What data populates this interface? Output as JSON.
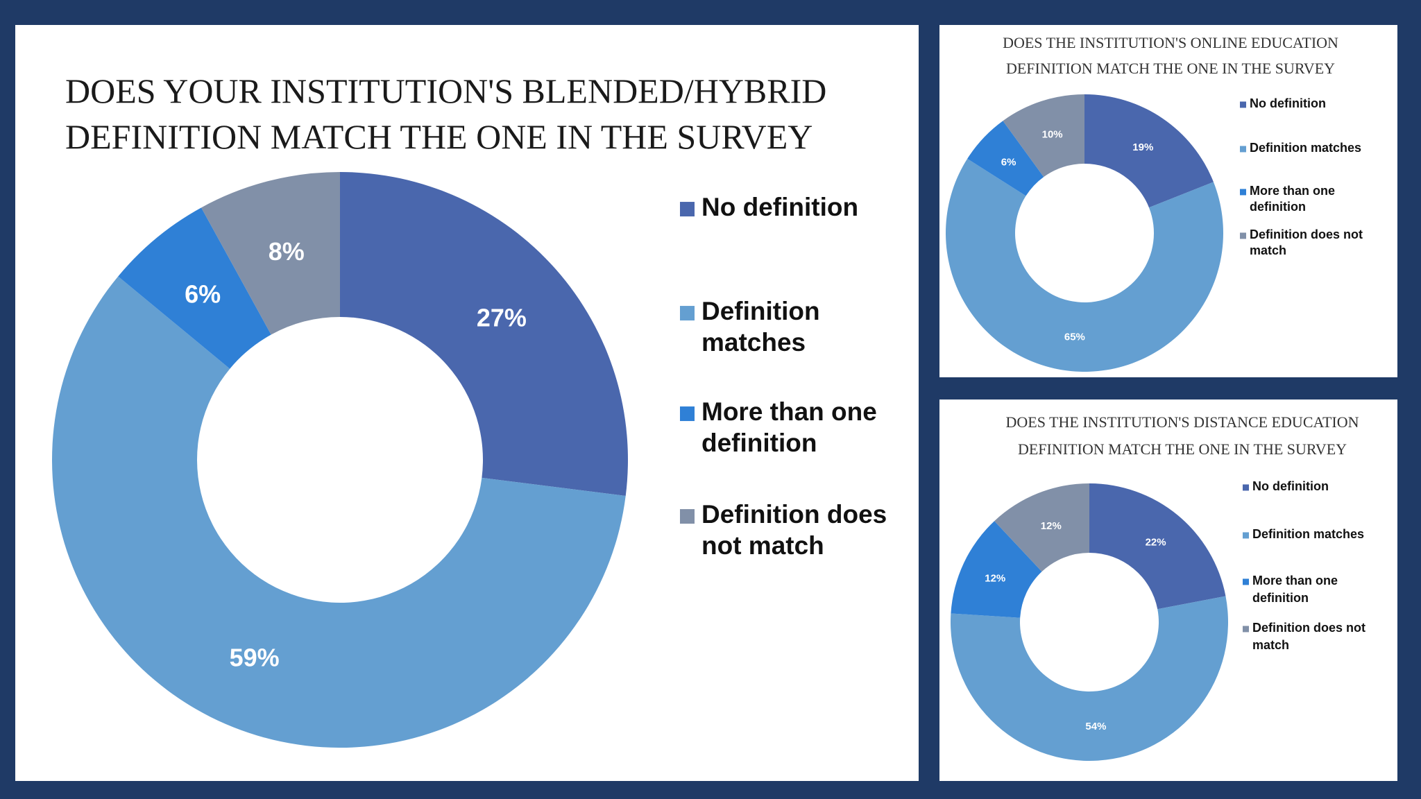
{
  "colors": {
    "background": "#1f3a66",
    "no_definition": "#4a67ad",
    "definition_matches": "#649fd1",
    "more_than_one": "#2f80d6",
    "does_not_match": "#8190a8"
  },
  "chart_data": [
    {
      "type": "pie",
      "title_lines": [
        "DOES YOUR INSTITUTION'S BLENDED/HYBRID",
        "DEFINITION MATCH THE ONE IN THE SURVEY"
      ],
      "categories": [
        "No definition",
        "Definition matches",
        "More than one definition",
        "Definition does not match"
      ],
      "values": [
        27,
        59,
        6,
        8
      ],
      "labels": [
        "27%",
        "59%",
        "6%",
        "8%"
      ],
      "legend_lines": [
        [
          "No definition"
        ],
        [
          "Definition",
          "matches"
        ],
        [
          "More than one",
          "definition"
        ],
        [
          "Definition does",
          "not match"
        ]
      ],
      "legend_position": "right",
      "donut": true
    },
    {
      "type": "pie",
      "title_lines": [
        "DOES THE INSTITUTION'S ONLINE EDUCATION",
        "DEFINITION MATCH THE ONE IN THE SURVEY"
      ],
      "categories": [
        "No definition",
        "Definition matches",
        "More than one definition",
        "Definition does not match"
      ],
      "values": [
        19,
        65,
        6,
        10
      ],
      "labels": [
        "19%",
        "65%",
        "6%",
        "10%"
      ],
      "legend_lines": [
        [
          "No definition"
        ],
        [
          "Definition matches"
        ],
        [
          "More than one",
          "definition"
        ],
        [
          "Definition does not",
          "match"
        ]
      ],
      "legend_position": "right",
      "donut": true
    },
    {
      "type": "pie",
      "title_lines": [
        "DOES THE INSTITUTION'S DISTANCE EDUCATION",
        "DEFINITION MATCH THE ONE IN THE SURVEY"
      ],
      "categories": [
        "No definition",
        "Definition matches",
        "More than one definition",
        "Definition does not match"
      ],
      "values": [
        22,
        54,
        12,
        12
      ],
      "labels": [
        "22%",
        "54%",
        "12%",
        "12%"
      ],
      "legend_lines": [
        [
          "No definition"
        ],
        [
          "Definition matches"
        ],
        [
          "More than one",
          "definition"
        ],
        [
          "Definition does not",
          "match"
        ]
      ],
      "legend_position": "right",
      "donut": true
    }
  ]
}
